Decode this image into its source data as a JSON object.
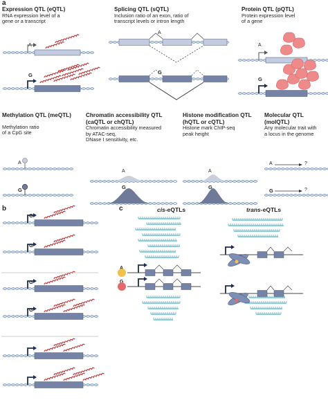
{
  "panels": {
    "a": "a",
    "b": "b",
    "c": "c"
  },
  "qtls": {
    "eqtl": {
      "title": "Expression QTL (eQTL)",
      "desc1": "RNA expression level of a",
      "desc2": "gene or a transcript"
    },
    "sqtl": {
      "title": "Splicing QTL (sQTL)",
      "desc1": "Inclusion ratio of an exon, ratio of",
      "desc2": "transcript levels or intron length"
    },
    "pqtl": {
      "title": "Protein QTL (pQTL)",
      "desc1": "Protein expression level",
      "desc2": "of a gene"
    },
    "meqtl": {
      "title": "Methylation QTL (meQTL)",
      "desc1": "Methylation ratio",
      "desc2": "of a CpG site"
    },
    "caqtl": {
      "title1": "Chromatin accessibility QTL",
      "title2": "(caQTL or chQTL)",
      "desc1": "Chromatin accessibility measured",
      "desc2": "by ATAC-seq,",
      "desc3": "DNase I sensitivity, etc."
    },
    "hqtl": {
      "title1": "Histone modification QTL",
      "title2": "(hQTL or cQTL)",
      "desc1": "Histone mark ChIP-seq",
      "desc2": "peak height"
    },
    "molqtl": {
      "title1": "Molecular QTL",
      "title2": "(molQTL)",
      "desc1": "Any molecular trait with",
      "desc2": "a locus in the genome"
    }
  },
  "alleles": {
    "a": "A",
    "g": "G",
    "unknown": "?"
  },
  "c": {
    "cis_prefix": "cis",
    "trans_prefix": "trans",
    "suffix": "-eQTLs"
  },
  "colors": {
    "dna": "#8aa3bf",
    "gene_light": "#c3cbe0",
    "gene_dark": "#7583a6",
    "rna": "#c0393b",
    "protein": "#ef8a8a",
    "peak_light": "#c9cfdc",
    "peak_dark": "#6e7a97",
    "reads": "#4fb6c8",
    "allele_a": "#f1c24b",
    "allele_g": "#e36b6b",
    "chromosome": "#7d8fb5"
  }
}
